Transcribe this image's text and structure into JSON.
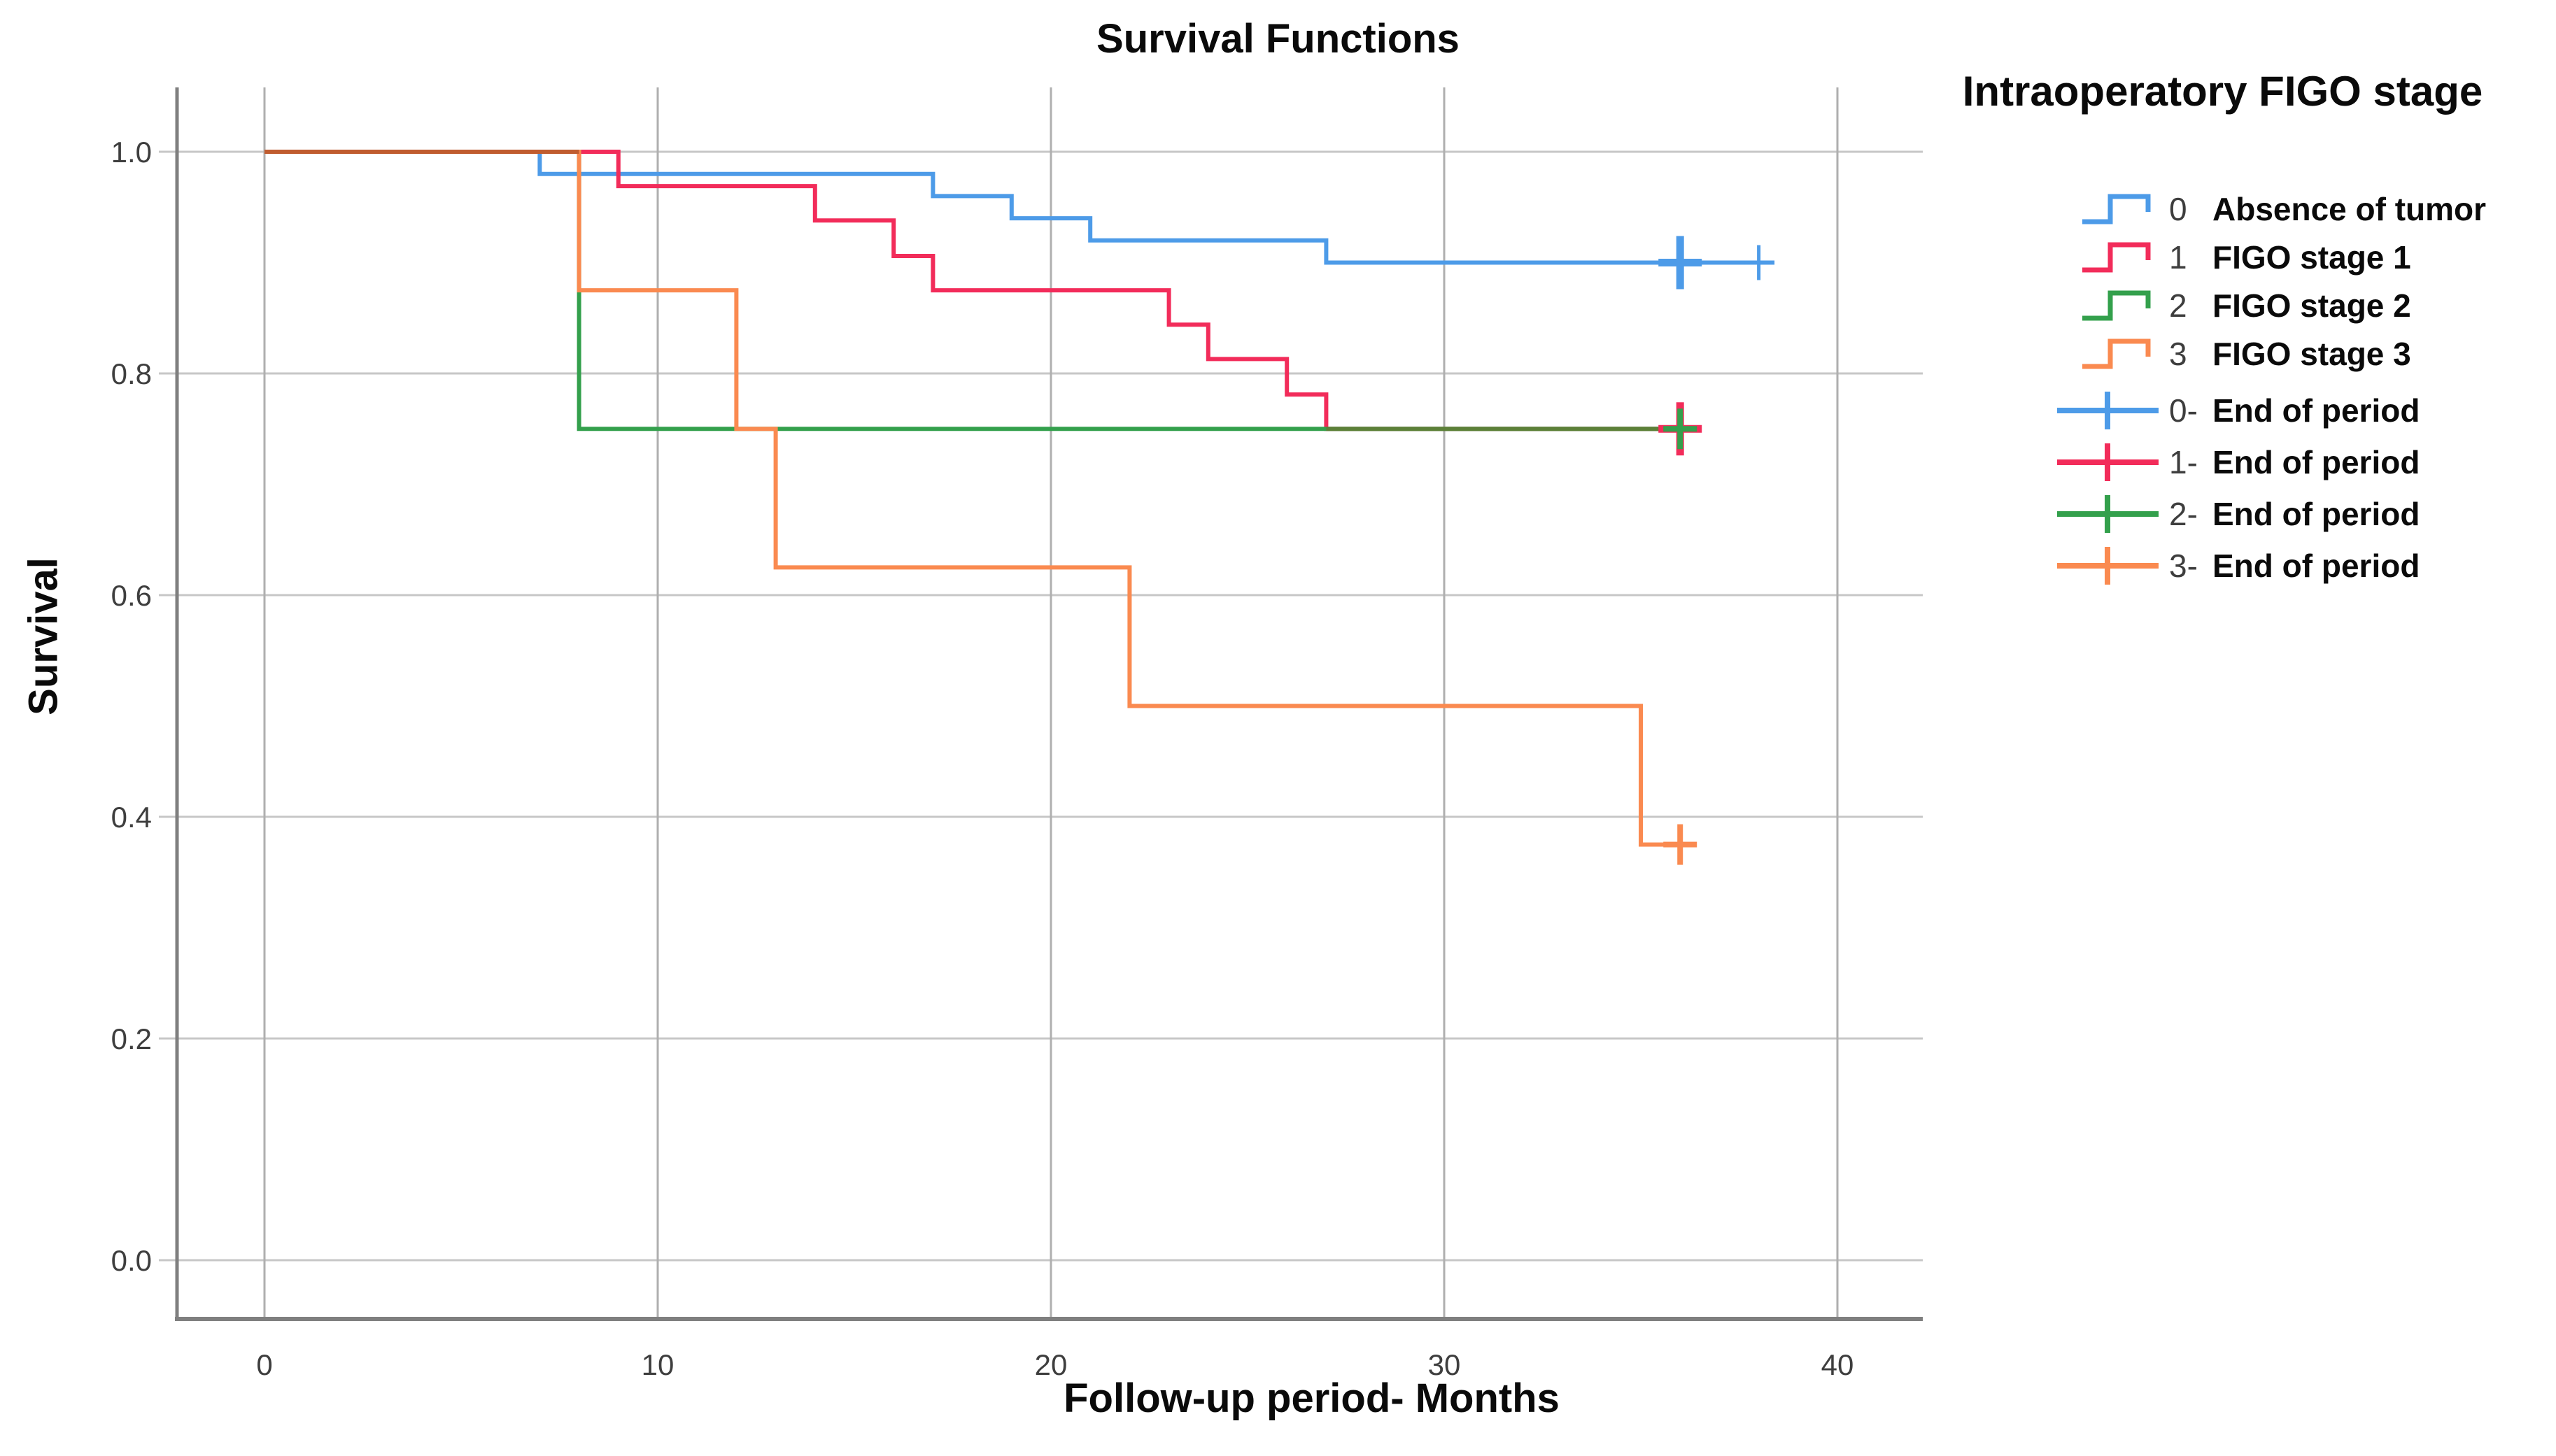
{
  "chart_data": {
    "type": "line",
    "subtype": "kaplan-meier-step-survival",
    "title": "Survival Functions",
    "xlabel": "Follow-up period- Months",
    "ylabel": "Survival",
    "grid": true,
    "legend_position": "right",
    "x_ticks": [
      {
        "label": "0",
        "value": 0
      },
      {
        "label": "10",
        "value": 10
      },
      {
        "label": "20",
        "value": 20
      },
      {
        "label": "30",
        "value": 30
      },
      {
        "label": "40",
        "value": 40
      }
    ],
    "y_ticks": [
      {
        "label": "1.0",
        "value": 1.0
      },
      {
        "label": "0.8",
        "value": 0.8
      },
      {
        "label": "0.6",
        "value": 0.6
      },
      {
        "label": "0.4",
        "value": 0.4
      },
      {
        "label": "0.2",
        "value": 0.2
      },
      {
        "label": "0.0",
        "value": 0.0
      }
    ],
    "xlim": [
      0,
      40
    ],
    "ylim": [
      0.0,
      1.0
    ],
    "series": [
      {
        "name": "0 Absence of tumor",
        "color": "#4d9be8",
        "steps": [
          [
            0,
            1.0
          ],
          [
            7,
            1.0
          ],
          [
            7,
            0.98
          ],
          [
            17,
            0.98
          ],
          [
            17,
            0.96
          ],
          [
            19,
            0.96
          ],
          [
            19,
            0.94
          ],
          [
            21,
            0.94
          ],
          [
            21,
            0.92
          ],
          [
            27,
            0.92
          ],
          [
            27,
            0.9
          ],
          [
            38.4,
            0.9
          ]
        ],
        "censored": [
          {
            "x": 36,
            "y": 0.9,
            "size": "large"
          },
          {
            "x": 38,
            "y": 0.9,
            "size": "small"
          }
        ]
      },
      {
        "name": "1 FIGO stage 1",
        "color": "#f22c5a",
        "steps": [
          [
            0,
            1.0
          ],
          [
            9,
            1.0
          ],
          [
            9,
            0.969
          ],
          [
            14,
            0.969
          ],
          [
            14,
            0.938
          ],
          [
            16,
            0.938
          ],
          [
            16,
            0.906
          ],
          [
            17,
            0.906
          ],
          [
            17,
            0.875
          ],
          [
            23,
            0.875
          ],
          [
            23,
            0.844
          ],
          [
            24,
            0.844
          ],
          [
            24,
            0.813
          ],
          [
            26,
            0.813
          ],
          [
            26,
            0.781
          ],
          [
            27,
            0.781
          ],
          [
            27,
            0.75
          ],
          [
            36.4,
            0.75
          ]
        ],
        "censored": [
          {
            "x": 36,
            "y": 0.75,
            "size": "large"
          }
        ]
      },
      {
        "name": "2 FIGO stage 2",
        "color": "#33a04c",
        "steps": [
          [
            0,
            1.0
          ],
          [
            8,
            1.0
          ],
          [
            8,
            0.75
          ],
          [
            36.4,
            0.75
          ]
        ],
        "censored": [
          {
            "x": 36,
            "y": 0.75,
            "size": "default"
          }
        ]
      },
      {
        "name": "3 FIGO stage 3",
        "color": "#fa8a50",
        "steps": [
          [
            0,
            1.0
          ],
          [
            8,
            1.0
          ],
          [
            8,
            0.875
          ],
          [
            12,
            0.875
          ],
          [
            12,
            0.75
          ],
          [
            13,
            0.75
          ],
          [
            13,
            0.625
          ],
          [
            22,
            0.625
          ],
          [
            22,
            0.5
          ],
          [
            35,
            0.5
          ],
          [
            35,
            0.375
          ],
          [
            36.3,
            0.375
          ]
        ],
        "censored": [
          {
            "x": 36,
            "y": 0.375,
            "size": "default"
          }
        ]
      }
    ],
    "overlap_segments": [
      {
        "from_x": 0,
        "to_x": 8,
        "y": 1.0,
        "color": "#c05c2f"
      },
      {
        "from_x": 27,
        "to_x": 36.4,
        "y": 0.75,
        "color": "#5c8038"
      }
    ],
    "legend": {
      "title": "Intraoperatory FIGO stage",
      "items": [
        {
          "marker": "step",
          "color": "#4d9be8",
          "number": "0",
          "label": "Absence of tumor"
        },
        {
          "marker": "step",
          "color": "#f22c5a",
          "number": "1",
          "label": "FIGO stage 1"
        },
        {
          "marker": "step",
          "color": "#33a04c",
          "number": "2",
          "label": "FIGO stage 2"
        },
        {
          "marker": "step",
          "color": "#fa8a50",
          "number": "3",
          "label": "FIGO stage 3"
        },
        {
          "marker": "plus",
          "color": "#4d9be8",
          "number": "0-",
          "label": "End of period"
        },
        {
          "marker": "plus",
          "color": "#f22c5a",
          "number": "1-",
          "label": "End of period"
        },
        {
          "marker": "plus",
          "color": "#33a04c",
          "number": "2-",
          "label": "End of period"
        },
        {
          "marker": "plus",
          "color": "#fa8a50",
          "number": "3-",
          "label": "End of period"
        }
      ]
    },
    "style": {
      "grid_h_color": "#c7c7c7",
      "grid_v_color": "#afafaf",
      "frame_color": "#7f7f7f",
      "tick_text_color": "#3e3e3e",
      "title_text_color": "#0a0a0a"
    }
  }
}
